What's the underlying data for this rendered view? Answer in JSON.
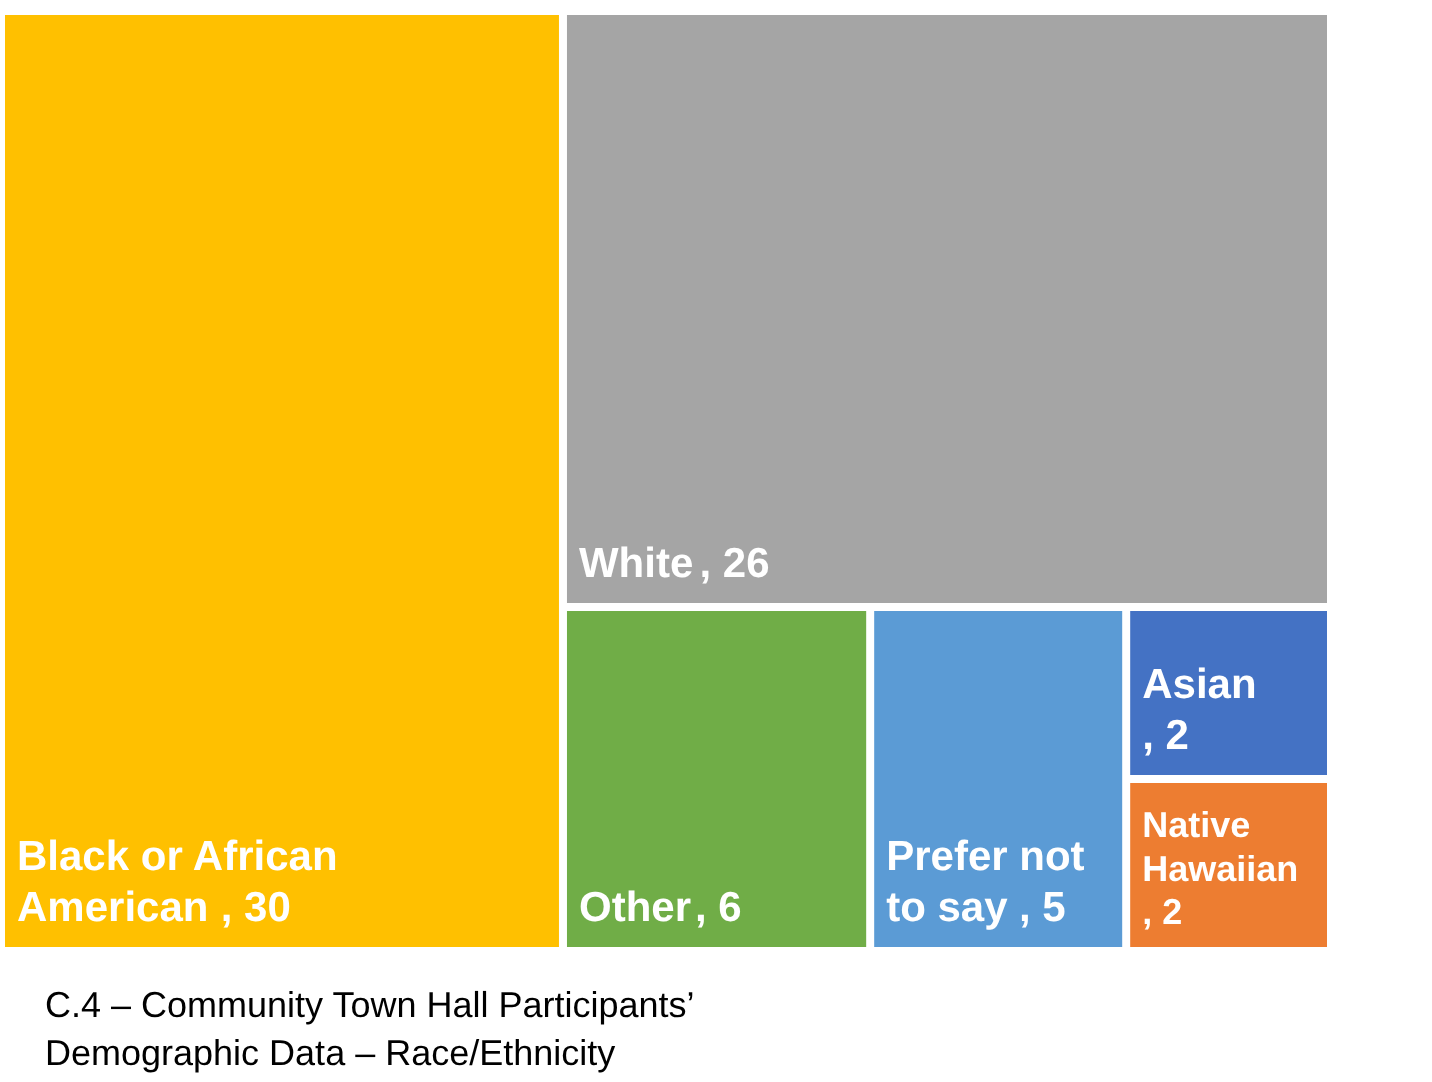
{
  "chart_data": {
    "type": "other",
    "categories": [
      "Black or African American",
      "White",
      "Other",
      "Prefer not to say",
      "Asian",
      "Native Hawaiian"
    ],
    "values": [
      30,
      26,
      6,
      5,
      2,
      2
    ],
    "value_labels": [
      ", 30",
      ", 26",
      ", 6",
      ", 5",
      ", 2",
      ", 2"
    ],
    "colors": [
      "#ffc000",
      "#a5a5a5",
      "#70ad47",
      "#5b9bd5",
      "#4472c4",
      "#ed7d31"
    ],
    "annotations": [
      "C.4 – Community Town Hall Participants’",
      "Demographic Data – Race/Ethnicity"
    ]
  }
}
